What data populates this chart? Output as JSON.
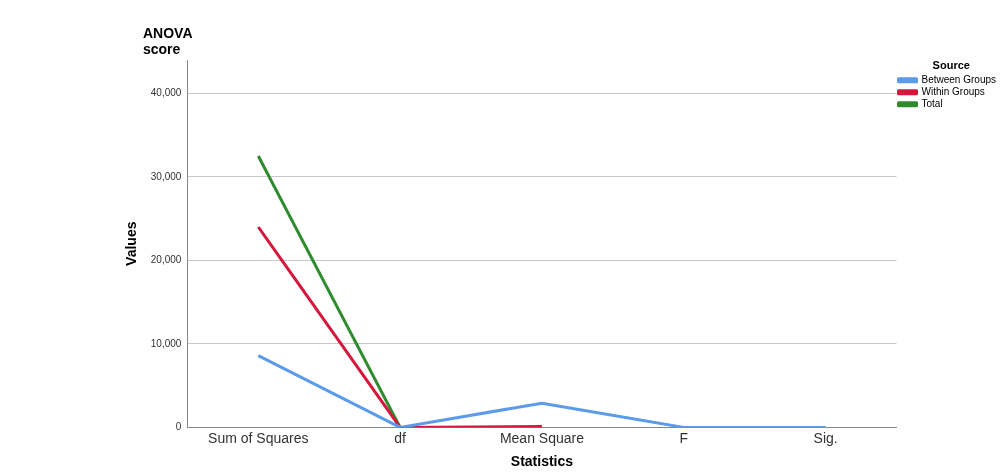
{
  "chart_data": {
    "type": "line",
    "title": "ANOVA score",
    "xlabel": "Statistics",
    "ylabel": "Values",
    "legend_title": "Source",
    "categories": [
      "Sum of Squares",
      "df",
      "Mean Square",
      "F",
      "Sig."
    ],
    "series": [
      {
        "name": "Between Groups",
        "color": "#5b9bea",
        "values": [
          8600,
          0,
          2900,
          0,
          0
        ]
      },
      {
        "name": "Within Groups",
        "color": "#d6173c",
        "values": [
          24000,
          0,
          100,
          null,
          null
        ]
      },
      {
        "name": "Total",
        "color": "#2e8b2e",
        "values": [
          32500,
          0,
          null,
          null,
          null
        ]
      }
    ],
    "ylim": [
      0,
      44000
    ],
    "yticks": [
      {
        "value": 0,
        "label": "0"
      },
      {
        "value": 10000,
        "label": "10,000"
      },
      {
        "value": 20000,
        "label": "20,000"
      },
      {
        "value": 30000,
        "label": "30,000"
      },
      {
        "value": 40000,
        "label": "40,000"
      }
    ],
    "grid": "y",
    "legend": "top right",
    "marker": "none",
    "line_style": "solid"
  }
}
